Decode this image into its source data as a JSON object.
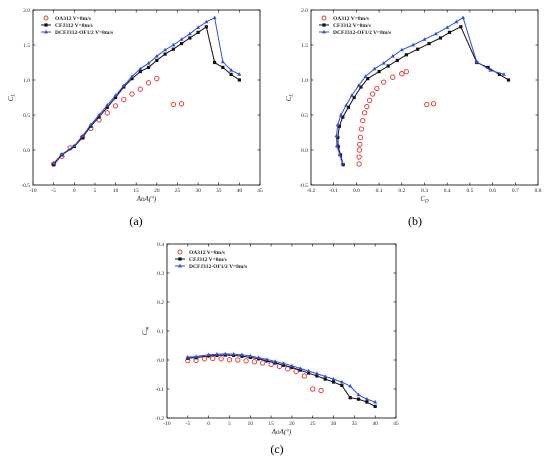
{
  "series_names": [
    "OA312  V=8m/s",
    "CFJ312  V=8m/s",
    "DCFJ312-OF1/2  V=8m/s"
  ],
  "colors": {
    "oa": "#e03030",
    "cfj": "#111111",
    "dcfj": "#2f4fd8"
  },
  "chart_data": [
    {
      "type": "line",
      "panel_label": "(a)",
      "xlabel": "AoA(°)",
      "ylabel": "C_L",
      "xlim": [
        -10,
        45
      ],
      "ylim": [
        -0.5,
        2.0
      ],
      "xticks": [
        -10,
        -5,
        0,
        5,
        10,
        15,
        20,
        25,
        30,
        35,
        40,
        45
      ],
      "yticks": [
        -0.5,
        0.0,
        0.5,
        1.0,
        1.5,
        2.0
      ],
      "xtick_labels": [
        "-10",
        "-5",
        "0",
        "5",
        "10",
        "15",
        "20",
        "25",
        "30",
        "35",
        "40",
        "45"
      ],
      "ytick_labels": [
        "-0.5",
        "0.0",
        "0.5",
        "1.0",
        "1.5",
        "2.0"
      ],
      "legend_position": "top-left",
      "series": [
        {
          "name": "OA312  V=8m/s",
          "style": "circle-open",
          "x": [
            -5,
            -3,
            -1,
            2,
            4,
            6,
            8,
            10,
            12,
            14,
            16,
            18,
            20,
            24,
            26
          ],
          "y": [
            -0.2,
            -0.09,
            0.03,
            0.18,
            0.31,
            0.43,
            0.53,
            0.63,
            0.72,
            0.8,
            0.87,
            0.96,
            1.02,
            0.65,
            0.66
          ]
        },
        {
          "name": "CFJ312  V=8m/s",
          "style": "square-line",
          "x": [
            -5,
            -3,
            0,
            2,
            4,
            6,
            8,
            10,
            12,
            14,
            16,
            18,
            20,
            22,
            24,
            26,
            28,
            30,
            32,
            34,
            36,
            38,
            40
          ],
          "y": [
            -0.21,
            -0.07,
            0.05,
            0.18,
            0.34,
            0.47,
            0.61,
            0.75,
            0.9,
            1.02,
            1.12,
            1.18,
            1.28,
            1.37,
            1.44,
            1.52,
            1.6,
            1.68,
            1.76,
            1.25,
            1.18,
            1.08,
            1.0
          ]
        },
        {
          "name": "DCFJ312-OF1/2  V=8m/s",
          "style": "triangle-line",
          "x": [
            -5,
            -3,
            0,
            2,
            4,
            6,
            8,
            10,
            12,
            14,
            16,
            18,
            20,
            22,
            24,
            26,
            28,
            30,
            32,
            34,
            36,
            38,
            40
          ],
          "y": [
            -0.19,
            -0.06,
            0.06,
            0.2,
            0.36,
            0.5,
            0.64,
            0.78,
            0.92,
            1.05,
            1.16,
            1.24,
            1.34,
            1.43,
            1.5,
            1.58,
            1.66,
            1.75,
            1.83,
            1.89,
            1.26,
            1.14,
            1.08
          ]
        }
      ]
    },
    {
      "type": "line",
      "panel_label": "(b)",
      "xlabel": "C_D",
      "ylabel": "C_L",
      "xlim": [
        -0.2,
        0.8
      ],
      "ylim": [
        -0.5,
        2.0
      ],
      "xticks": [
        -0.2,
        -0.1,
        0.0,
        0.1,
        0.2,
        0.3,
        0.4,
        0.5,
        0.6,
        0.7,
        0.8
      ],
      "yticks": [
        -0.5,
        0.0,
        0.5,
        1.0,
        1.5,
        2.0
      ],
      "xtick_labels": [
        "-0.2",
        "-0.1",
        "0.0",
        "0.1",
        "0.2",
        "0.3",
        "0.4",
        "0.5",
        "0.6",
        "0.7",
        "0.8"
      ],
      "ytick_labels": [
        "-0.5",
        "0.0",
        "0.5",
        "1.0",
        "1.5",
        "2.0"
      ],
      "legend_position": "top-left",
      "series": [
        {
          "name": "OA312  V=8m/s",
          "style": "circle-open",
          "x": [
            0.012,
            0.012,
            0.013,
            0.015,
            0.018,
            0.022,
            0.028,
            0.036,
            0.046,
            0.058,
            0.072,
            0.09,
            0.12,
            0.16,
            0.2,
            0.22,
            0.31,
            0.34
          ],
          "y": [
            -0.2,
            -0.1,
            0.0,
            0.08,
            0.18,
            0.3,
            0.42,
            0.53,
            0.62,
            0.71,
            0.8,
            0.88,
            0.97,
            1.04,
            1.09,
            1.12,
            0.65,
            0.66
          ]
        },
        {
          "name": "CFJ312  V=8m/s",
          "style": "square-line",
          "x": [
            -0.058,
            -0.07,
            -0.08,
            -0.082,
            -0.075,
            -0.06,
            -0.035,
            -0.01,
            0.02,
            0.05,
            0.1,
            0.14,
            0.18,
            0.22,
            0.27,
            0.32,
            0.37,
            0.41,
            0.46,
            0.53,
            0.58,
            0.63,
            0.67
          ],
          "y": [
            -0.21,
            -0.07,
            0.05,
            0.18,
            0.34,
            0.47,
            0.61,
            0.75,
            0.9,
            1.02,
            1.12,
            1.2,
            1.28,
            1.36,
            1.44,
            1.52,
            1.6,
            1.68,
            1.76,
            1.25,
            1.18,
            1.08,
            1.0
          ]
        },
        {
          "name": "DCFJ312-OF1/2  V=8m/s",
          "style": "triangle-line",
          "x": [
            -0.062,
            -0.074,
            -0.086,
            -0.088,
            -0.082,
            -0.068,
            -0.045,
            -0.02,
            0.01,
            0.04,
            0.08,
            0.12,
            0.16,
            0.2,
            0.25,
            0.3,
            0.35,
            0.4,
            0.44,
            0.47,
            0.53,
            0.59,
            0.65
          ],
          "y": [
            -0.19,
            -0.06,
            0.06,
            0.2,
            0.36,
            0.5,
            0.64,
            0.78,
            0.92,
            1.05,
            1.16,
            1.24,
            1.34,
            1.43,
            1.5,
            1.58,
            1.66,
            1.75,
            1.83,
            1.89,
            1.26,
            1.14,
            1.08
          ]
        }
      ]
    },
    {
      "type": "line",
      "panel_label": "(c)",
      "xlabel": "AoA(°)",
      "ylabel": "C_m",
      "xlim": [
        -10,
        45
      ],
      "ylim": [
        -0.2,
        0.4
      ],
      "xticks": [
        -10,
        -5,
        0,
        5,
        10,
        15,
        20,
        25,
        30,
        35,
        40,
        45
      ],
      "yticks": [
        -0.2,
        -0.1,
        0.0,
        0.1,
        0.2,
        0.3,
        0.4
      ],
      "xtick_labels": [
        "-10",
        "-5",
        "0",
        "5",
        "10",
        "15",
        "20",
        "25",
        "30",
        "35",
        "40",
        "45"
      ],
      "ytick_labels": [
        "-0.2",
        "-0.1",
        "0.0",
        "0.1",
        "0.2",
        "0.3",
        "0.4"
      ],
      "legend_position": "top-left",
      "series": [
        {
          "name": "OA312  V=8m/s",
          "style": "circle-open",
          "x": [
            -5,
            -3,
            -1,
            1,
            3,
            5,
            7,
            9,
            11,
            13,
            15,
            17,
            19,
            21,
            23,
            25,
            27
          ],
          "y": [
            -0.002,
            -0.001,
            0.004,
            0.005,
            0.004,
            0.001,
            0.0,
            -0.003,
            -0.006,
            -0.01,
            -0.015,
            -0.022,
            -0.03,
            -0.04,
            -0.055,
            -0.1,
            -0.105
          ]
        },
        {
          "name": "CFJ312  V=8m/s",
          "style": "square-line",
          "x": [
            -5,
            -3,
            0,
            2,
            4,
            6,
            8,
            10,
            12,
            14,
            16,
            18,
            20,
            22,
            24,
            26,
            28,
            30,
            32,
            34,
            36,
            38,
            40
          ],
          "y": [
            0.006,
            0.008,
            0.014,
            0.016,
            0.017,
            0.016,
            0.013,
            0.009,
            0.004,
            -0.003,
            -0.01,
            -0.018,
            -0.026,
            -0.035,
            -0.045,
            -0.055,
            -0.066,
            -0.076,
            -0.088,
            -0.13,
            -0.135,
            -0.145,
            -0.16
          ]
        },
        {
          "name": "DCFJ312-OF1/2  V=8m/s",
          "style": "triangle-line",
          "x": [
            -5,
            -3,
            0,
            2,
            4,
            6,
            8,
            10,
            12,
            14,
            16,
            18,
            20,
            22,
            24,
            26,
            28,
            30,
            32,
            34,
            36,
            38,
            40
          ],
          "y": [
            0.01,
            0.012,
            0.018,
            0.02,
            0.021,
            0.02,
            0.018,
            0.014,
            0.008,
            0.002,
            -0.005,
            -0.012,
            -0.02,
            -0.029,
            -0.038,
            -0.047,
            -0.057,
            -0.066,
            -0.076,
            -0.09,
            -0.12,
            -0.135,
            -0.145
          ]
        }
      ]
    }
  ]
}
